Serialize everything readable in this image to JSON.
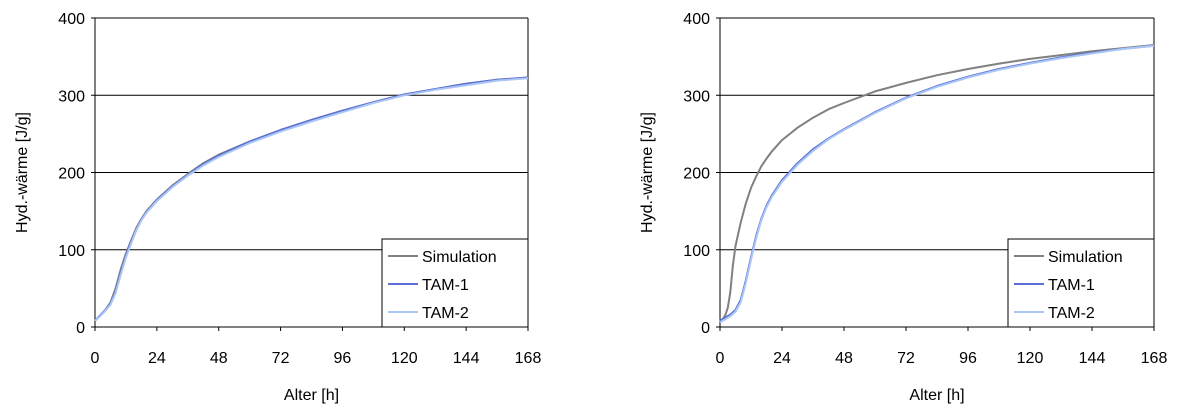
{
  "chart_data": [
    {
      "type": "line",
      "title": "",
      "xlabel": "Alter [h]",
      "ylabel": "Hyd.-wärme [J/g]",
      "xlim": [
        0,
        168
      ],
      "ylim": [
        0,
        400
      ],
      "xticks": [
        0,
        24,
        48,
        72,
        96,
        120,
        144,
        168
      ],
      "yticks": [
        0,
        100,
        200,
        300,
        400
      ],
      "grid": "horizontal",
      "legend": "bottom-right",
      "series": [
        {
          "name": "Simulation",
          "color": "#808080",
          "x": [
            0,
            2,
            4,
            6,
            8,
            10,
            12,
            14,
            16,
            18,
            20,
            24,
            30,
            36,
            42,
            48,
            60,
            72,
            84,
            96,
            108,
            120,
            132,
            144,
            156,
            168
          ],
          "y": [
            8,
            15,
            22,
            32,
            50,
            75,
            95,
            112,
            128,
            140,
            150,
            165,
            183,
            198,
            212,
            223,
            240,
            255,
            268,
            280,
            291,
            301,
            308,
            315,
            320,
            323
          ]
        },
        {
          "name": "TAM-1",
          "color": "#5b6fd4",
          "x": [
            0,
            2,
            4,
            6,
            8,
            10,
            12,
            14,
            16,
            18,
            20,
            24,
            30,
            36,
            42,
            48,
            60,
            72,
            84,
            96,
            108,
            120,
            132,
            144,
            156,
            168
          ],
          "y": [
            8,
            15,
            22,
            30,
            46,
            70,
            92,
            110,
            126,
            139,
            149,
            164,
            182,
            197,
            211,
            222,
            240,
            255,
            268,
            280,
            291,
            301,
            308,
            315,
            320,
            323
          ]
        },
        {
          "name": "TAM-2",
          "color": "#a9c6f5",
          "x": [
            0,
            2,
            4,
            6,
            8,
            10,
            12,
            14,
            16,
            18,
            20,
            24,
            30,
            36,
            42,
            48,
            60,
            72,
            84,
            96,
            108,
            120,
            132,
            144,
            156,
            168
          ],
          "y": [
            8,
            14,
            21,
            29,
            44,
            68,
            90,
            108,
            125,
            138,
            148,
            163,
            181,
            196,
            209,
            220,
            238,
            253,
            266,
            278,
            290,
            300,
            307,
            313,
            319,
            322
          ]
        }
      ]
    },
    {
      "type": "line",
      "title": "",
      "xlabel": "Alter [h]",
      "ylabel": "Hyd.-wärme [J/g]",
      "xlim": [
        0,
        168
      ],
      "ylim": [
        0,
        400
      ],
      "xticks": [
        0,
        24,
        48,
        72,
        96,
        120,
        144,
        168
      ],
      "yticks": [
        0,
        100,
        200,
        300,
        400
      ],
      "grid": "horizontal",
      "legend": "bottom-right",
      "series": [
        {
          "name": "Simulation",
          "color": "#808080",
          "x": [
            0,
            1,
            2,
            3,
            4,
            5,
            6,
            8,
            10,
            12,
            14,
            16,
            18,
            20,
            24,
            30,
            36,
            42,
            48,
            60,
            72,
            84,
            96,
            108,
            120,
            132,
            144,
            156,
            168
          ],
          "y": [
            8,
            10,
            15,
            25,
            45,
            80,
            105,
            135,
            160,
            180,
            195,
            208,
            218,
            227,
            242,
            258,
            271,
            282,
            290,
            305,
            316,
            326,
            334,
            341,
            347,
            352,
            357,
            361,
            365
          ]
        },
        {
          "name": "TAM-1",
          "color": "#5b6fd4",
          "x": [
            0,
            2,
            4,
            6,
            8,
            10,
            12,
            14,
            16,
            18,
            20,
            24,
            30,
            36,
            42,
            48,
            60,
            72,
            84,
            96,
            108,
            120,
            132,
            144,
            156,
            168
          ],
          "y": [
            8,
            12,
            16,
            22,
            35,
            60,
            90,
            118,
            140,
            157,
            170,
            190,
            212,
            230,
            244,
            256,
            278,
            297,
            312,
            324,
            334,
            342,
            349,
            355,
            360,
            364
          ]
        },
        {
          "name": "TAM-2",
          "color": "#a9c6f5",
          "x": [
            0,
            2,
            4,
            6,
            8,
            10,
            12,
            14,
            16,
            18,
            20,
            24,
            30,
            36,
            42,
            48,
            60,
            72,
            84,
            96,
            108,
            120,
            132,
            144,
            156,
            168
          ],
          "y": [
            6,
            10,
            14,
            20,
            32,
            57,
            87,
            115,
            138,
            155,
            168,
            188,
            210,
            228,
            243,
            255,
            277,
            296,
            311,
            323,
            333,
            341,
            348,
            354,
            360,
            364
          ]
        }
      ]
    }
  ]
}
